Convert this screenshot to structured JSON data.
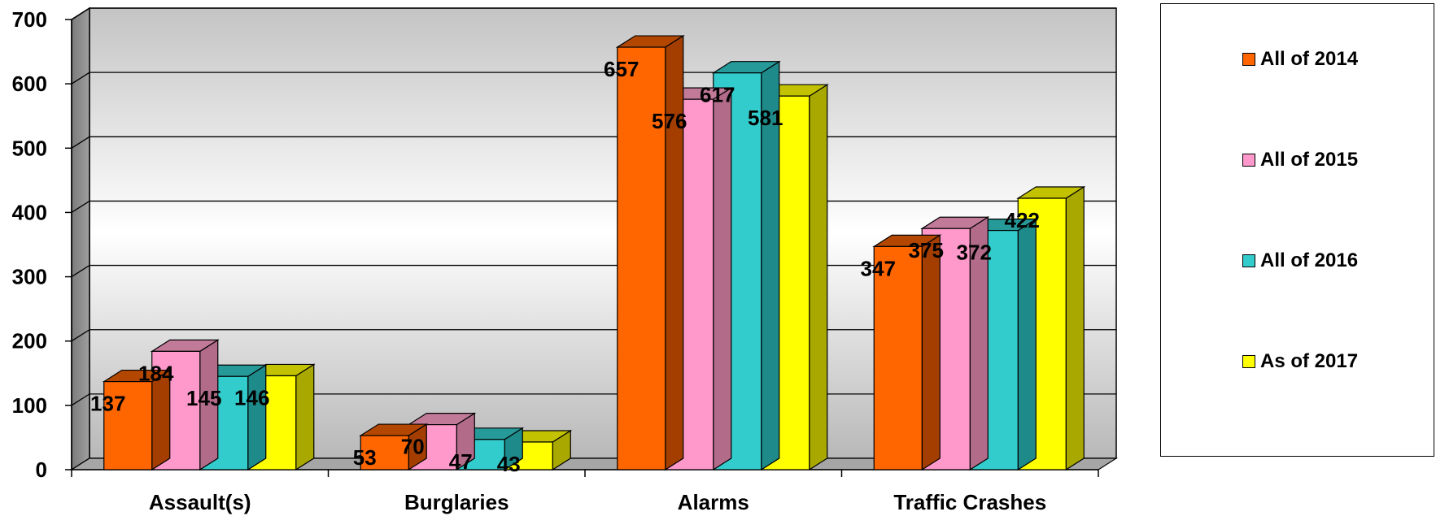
{
  "chart_data": {
    "type": "bar",
    "categories": [
      "Assault(s)",
      "Burglaries",
      "Alarms",
      "Traffic Crashes"
    ],
    "series": [
      {
        "name": "All of 2014",
        "values": [
          137,
          53,
          657,
          347
        ],
        "color": "#FF6600",
        "top_color": "#B34700",
        "side_color": "#A33E00"
      },
      {
        "name": "All of 2015",
        "values": [
          184,
          70,
          576,
          375
        ],
        "color": "#FF99CC",
        "top_color": "#C27A99",
        "side_color": "#B36B8A"
      },
      {
        "name": "All of 2016",
        "values": [
          145,
          47,
          617,
          372
        ],
        "color": "#33CCCC",
        "top_color": "#269999",
        "side_color": "#1F8A8A"
      },
      {
        "name": "As of 2017",
        "values": [
          146,
          43,
          581,
          422
        ],
        "color": "#FFFF00",
        "top_color": "#C2C200",
        "side_color": "#A8A800"
      }
    ],
    "ylim": [
      0,
      700
    ],
    "yticks": [
      0,
      100,
      200,
      300,
      400,
      500,
      600,
      700
    ],
    "grid": true,
    "legend_position": "right"
  }
}
